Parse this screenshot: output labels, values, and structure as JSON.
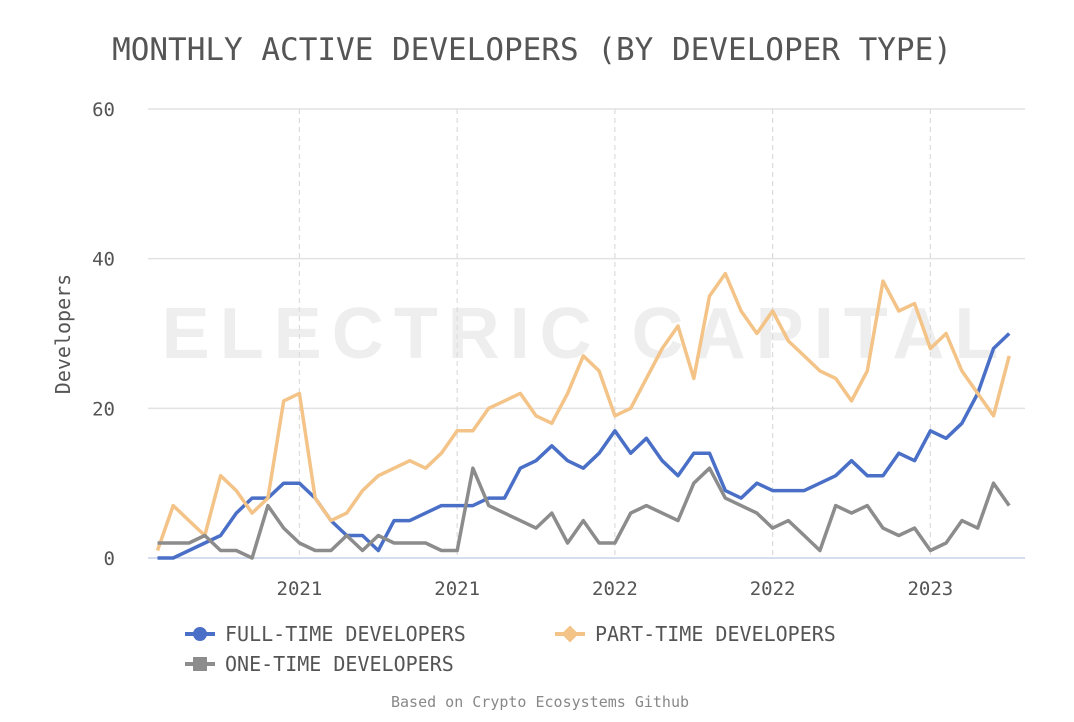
{
  "chart_data": {
    "type": "line",
    "title": "MONTHLY ACTIVE DEVELOPERS (BY DEVELOPER TYPE)",
    "y_label": "Developers",
    "watermark": "ELECTRIC CAPITAL",
    "source": "Based on Crypto Ecosystems Github",
    "x": [
      2020.55,
      2020.6,
      2020.65,
      2020.7,
      2020.75,
      2020.8,
      2020.85,
      2020.9,
      2020.95,
      2021.0,
      2021.05,
      2021.1,
      2021.15,
      2021.2,
      2021.25,
      2021.3,
      2021.35,
      2021.4,
      2021.45,
      2021.5,
      2021.55,
      2021.6,
      2021.65,
      2021.7,
      2021.75,
      2021.8,
      2021.85,
      2021.9,
      2021.95,
      2022.0,
      2022.05,
      2022.1,
      2022.15,
      2022.2,
      2022.25,
      2022.3,
      2022.35,
      2022.4,
      2022.45,
      2022.5,
      2022.55,
      2022.6,
      2022.65,
      2022.7,
      2022.75,
      2022.8,
      2022.85,
      2022.9,
      2022.95,
      2023.0,
      2023.05,
      2023.1,
      2023.15,
      2023.2,
      2023.25
    ],
    "series": [
      {
        "name": "FULL-TIME DEVELOPERS",
        "color": "#4a6fc7",
        "marker": "circle",
        "values": [
          0,
          0,
          1,
          2,
          3,
          6,
          8,
          8,
          10,
          10,
          8,
          5,
          3,
          3,
          1,
          5,
          5,
          6,
          7,
          7,
          7,
          8,
          8,
          12,
          13,
          15,
          13,
          12,
          14,
          17,
          14,
          16,
          13,
          11,
          14,
          14,
          9,
          8,
          10,
          9,
          9,
          9,
          10,
          11,
          13,
          11,
          11,
          14,
          13,
          17,
          16,
          18,
          22,
          28,
          30
        ]
      },
      {
        "name": "PART-TIME DEVELOPERS",
        "color": "#f3c387",
        "marker": "diamond",
        "values": [
          1,
          7,
          5,
          3,
          11,
          9,
          6,
          8,
          21,
          22,
          8,
          5,
          6,
          9,
          11,
          12,
          13,
          12,
          14,
          17,
          17,
          20,
          21,
          22,
          19,
          18,
          22,
          27,
          25,
          19,
          20,
          24,
          28,
          31,
          24,
          35,
          38,
          33,
          30,
          33,
          29,
          27,
          25,
          24,
          21,
          25,
          37,
          33,
          34,
          28,
          30,
          25,
          22,
          19,
          27
        ]
      },
      {
        "name": "ONE-TIME DEVELOPERS",
        "color": "#8c8c8c",
        "marker": "square",
        "values": [
          2,
          2,
          2,
          3,
          1,
          1,
          0,
          7,
          4,
          2,
          1,
          1,
          3,
          1,
          3,
          2,
          2,
          2,
          1,
          1,
          12,
          7,
          6,
          5,
          4,
          6,
          2,
          5,
          2,
          2,
          6,
          7,
          6,
          5,
          10,
          12,
          8,
          7,
          6,
          4,
          5,
          3,
          1,
          7,
          6,
          7,
          4,
          3,
          4,
          1,
          2,
          5,
          4,
          10,
          7
        ]
      }
    ],
    "xlim": [
      2020.52,
      2023.3
    ],
    "xticks": [
      2021,
      {
        "value": 2021.5,
        "label": "2021"
      },
      2022,
      {
        "value": 2022.5,
        "label": "2022"
      },
      2023
    ],
    "ylim": [
      0,
      60
    ],
    "yticks": [
      0,
      20,
      40,
      60
    ],
    "grid": true
  }
}
